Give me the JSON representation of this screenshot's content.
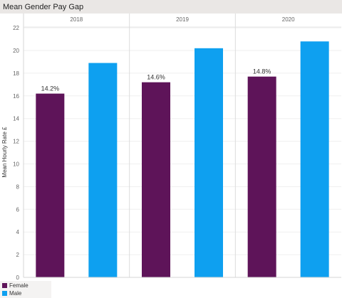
{
  "title": "Mean Gender Pay Gap",
  "colors": {
    "female": "#5e1459",
    "male": "#0ea0f0"
  },
  "legend": [
    {
      "label": "Female",
      "color": "#5e1459"
    },
    {
      "label": "Male",
      "color": "#0ea0f0"
    }
  ],
  "chart_data": {
    "type": "bar",
    "categories": [
      "2018",
      "2019",
      "2020"
    ],
    "series": [
      {
        "name": "Female",
        "values": [
          16.2,
          17.2,
          17.7
        ],
        "labels": [
          "14.2%",
          "14.6%",
          "14.8%"
        ]
      },
      {
        "name": "Male",
        "values": [
          18.9,
          20.2,
          20.8
        ]
      }
    ],
    "ylabel": "Mean Hourly Rate £",
    "ylim": [
      0,
      23
    ],
    "yticks": [
      0,
      2,
      4,
      6,
      8,
      10,
      12,
      14,
      16,
      18,
      20,
      22
    ],
    "grid": true,
    "legend_position": "bottom-left"
  }
}
